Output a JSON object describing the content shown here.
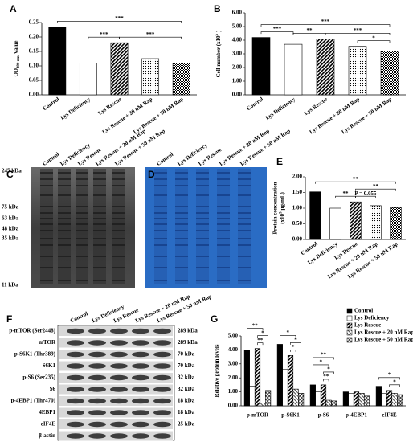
{
  "chart_data": [
    {
      "panel": "A",
      "type": "bar",
      "y_label": [
        [
          {
            "text": "OD"
          },
          {
            "text": "490 nm",
            "shift": "sub"
          },
          {
            "text": "Value"
          }
        ]
      ],
      "categories": [
        "Control",
        "Lys Deficiency",
        "Lys Rescue",
        "Lys Rescue + 20 nM Rap",
        "Lys Rescue + 50 nM Rap"
      ],
      "values": [
        0.235,
        0.11,
        0.18,
        0.125,
        0.11
      ],
      "fill_styles": [
        "solid",
        "empty",
        "diagonal",
        "dotted",
        "checkered"
      ],
      "ylim": [
        0,
        0.25
      ],
      "yticks": [
        {
          "value": 0,
          "label": "0.00"
        },
        {
          "value": 0.05,
          "label": "0.05"
        },
        {
          "value": 0.1,
          "label": "0.10"
        },
        {
          "value": 0.15,
          "label": "0.15"
        },
        {
          "value": 0.2,
          "label": "0.20"
        },
        {
          "value": 0.25,
          "label": "0.25"
        }
      ],
      "annotations": [
        {
          "label": "***",
          "from": 1,
          "to": 2
        },
        {
          "label": "***",
          "from": 2,
          "to": 4
        },
        {
          "label": "***",
          "from": 0,
          "to": 4
        }
      ]
    },
    {
      "panel": "B",
      "type": "bar",
      "y_label": [
        [
          {
            "text": "Cell number (x10"
          },
          {
            "text": "5",
            "shift": "super"
          },
          {
            "text": ")"
          }
        ]
      ],
      "categories": [
        "Control",
        "Lys Deficiency",
        "Lys Rescue",
        "Lys Rescue + 20 nM Rap",
        "Lys Rescue + 50 nM Rap"
      ],
      "values": [
        4.2,
        3.7,
        4.1,
        3.55,
        3.2
      ],
      "fill_styles": [
        "solid",
        "empty",
        "diagonal",
        "dotted",
        "checkered"
      ],
      "ylim": [
        0,
        6
      ],
      "yticks": [
        {
          "value": 0,
          "label": "0.00"
        },
        {
          "value": 1,
          "label": "1.00"
        },
        {
          "value": 2,
          "label": "2.00"
        },
        {
          "value": 3,
          "label": "3.00"
        },
        {
          "value": 4,
          "label": "4.00"
        },
        {
          "value": 5,
          "label": "5.00"
        },
        {
          "value": 6,
          "label": "6.00"
        }
      ],
      "annotations": [
        {
          "label": "*",
          "from": 3,
          "to": 4
        },
        {
          "label": "***",
          "from": 0,
          "to": 1
        },
        {
          "label": "**",
          "from": 1,
          "to": 2
        },
        {
          "label": "***",
          "from": 2,
          "to": 4
        },
        {
          "label": "***",
          "from": 0,
          "to": 4
        }
      ]
    },
    {
      "panel": "E",
      "type": "bar",
      "y_label": [
        [
          {
            "text": "Protein concentration"
          }
        ],
        [
          {
            "text": "(x10"
          },
          {
            "text": "3",
            "shift": "super"
          },
          {
            "text": "μg/mL)"
          }
        ]
      ],
      "categories": [
        "Control",
        "Lys Deficiency",
        "Lys Rescue",
        "Lys Rescue + 20 nM Rap",
        "Lys Rescue + 50 nM Rap"
      ],
      "values": [
        1.52,
        1.0,
        1.2,
        1.08,
        1.02
      ],
      "fill_styles": [
        "solid",
        "empty",
        "diagonal",
        "dotted",
        "checkered"
      ],
      "ylim": [
        0,
        2
      ],
      "yticks": [
        {
          "value": 0,
          "label": "0.00"
        },
        {
          "value": 0.5,
          "label": "0.50"
        },
        {
          "value": 1,
          "label": "1.00"
        },
        {
          "value": 1.5,
          "label": "1.50"
        },
        {
          "value": 2,
          "label": "2.00"
        }
      ],
      "annotations": [
        {
          "label": "**",
          "from": 1,
          "to": 2
        },
        {
          "label": "P = 0.055",
          "from": 2,
          "to": 3
        },
        {
          "label": "**",
          "from": 2,
          "to": 4
        },
        {
          "label": "**",
          "from": 0,
          "to": 4
        }
      ]
    },
    {
      "panel": "G",
      "type": "grouped_bar",
      "y_label": [
        [
          {
            "text": "Relative protein levels"
          }
        ]
      ],
      "categories": [
        "p-mTOR",
        "p-S6K1",
        "p-S6",
        "p-4EBP1",
        "eIF4E"
      ],
      "series": [
        {
          "name": "Control",
          "fill_style": "solid",
          "values": [
            4.0,
            4.4,
            1.5,
            1.0,
            1.4
          ]
        },
        {
          "name": "Lys Deficiency",
          "fill_style": "empty",
          "values": [
            1.4,
            2.6,
            1.0,
            0.9,
            0.9
          ]
        },
        {
          "name": "Lys Rescue",
          "fill_style": "diagonal",
          "values": [
            4.1,
            3.6,
            1.5,
            1.0,
            1.1
          ]
        },
        {
          "name": "Lys Rescue + 20 nM Rap",
          "fill_style": "backdiag",
          "values": [
            0.2,
            1.2,
            0.4,
            0.9,
            0.9
          ]
        },
        {
          "name": "Lys Rescue + 50 nM Rap",
          "fill_style": "cross",
          "values": [
            1.1,
            0.9,
            0.35,
            0.7,
            0.8
          ]
        }
      ],
      "ylim": [
        0,
        5
      ],
      "yticks": [
        {
          "value": 0,
          "label": "0.00"
        },
        {
          "value": 1,
          "label": "1.00"
        },
        {
          "value": 2,
          "label": "2.00"
        },
        {
          "value": 3,
          "label": "3.00"
        },
        {
          "value": 4,
          "label": "4.00"
        },
        {
          "value": 5,
          "label": "5.00"
        }
      ],
      "legend": "upper right",
      "annotations": [
        {
          "category": 0,
          "label": "**",
          "from": 2,
          "to": 3
        },
        {
          "category": 0,
          "label": "*",
          "from": 2,
          "to": 4
        },
        {
          "category": 0,
          "label": "**",
          "from": 0,
          "to": 3
        },
        {
          "category": 1,
          "label": "*",
          "from": 2,
          "to": 3
        },
        {
          "category": 1,
          "label": "*",
          "from": 2,
          "to": 4
        },
        {
          "category": 1,
          "label": "*",
          "from": 0,
          "to": 3
        },
        {
          "category": 2,
          "label": "**",
          "from": 2,
          "to": 3
        },
        {
          "category": 2,
          "label": "*",
          "from": 2,
          "to": 4
        },
        {
          "category": 2,
          "label": "*",
          "from": 0,
          "to": 3
        },
        {
          "category": 2,
          "label": "**",
          "from": 0,
          "to": 4
        },
        {
          "category": 4,
          "label": "*",
          "from": 2,
          "to": 4
        },
        {
          "category": 4,
          "label": "*",
          "from": 0,
          "to": 4
        }
      ]
    }
  ],
  "gels": [
    {
      "panel": "C",
      "lanes": [
        "Control",
        "Lys Deficiency",
        "Lys Rescue",
        "Lys Rescue + 20 nM Rap",
        "Lys Rescue + 50 nM Rap"
      ],
      "markers": [
        "245 kDa",
        "75 kDa",
        "63 kDa",
        "48 kDa",
        "35 kDa",
        "11 kDa"
      ]
    },
    {
      "panel": "D",
      "lanes": [
        "Control",
        "Lys Deficiency",
        "Lys Rescue",
        "Lys Rescue + 20 nM Rap",
        "Lys Rescue + 50 nM Rap"
      ]
    }
  ],
  "blot": {
    "panel": "F",
    "lanes": [
      "Control",
      "Lys Deficiency",
      "Lys Rescue",
      "Lys Rescue + 20 nM Rap",
      "Lys Rescue + 50 nM Rap"
    ],
    "rows": [
      {
        "protein": "p-mTOR (Ser2448)",
        "size": "289 kDa"
      },
      {
        "protein": "mTOR",
        "size": "289 kDa"
      },
      {
        "protein": "p-S6K1 (Thr389)",
        "size": "70 kDa"
      },
      {
        "protein": "S6K1",
        "size": "70 kDa"
      },
      {
        "protein": "p-S6 (Ser235)",
        "size": "32 kDa"
      },
      {
        "protein": "S6",
        "size": "32 kDa"
      },
      {
        "protein": "p-4EBP1 (Thr470)",
        "size": "18 kDa"
      },
      {
        "protein": "4EBP1",
        "size": "18 kDa"
      },
      {
        "protein": "eIF4E",
        "size": "25 kDa"
      },
      {
        "protein": "β-actin"
      }
    ]
  }
}
